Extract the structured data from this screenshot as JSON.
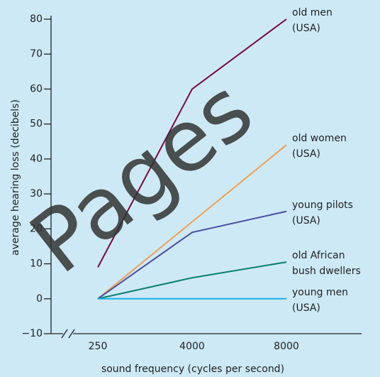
{
  "chart_data": {
    "type": "line",
    "y_label": "average hearing loss (decibels)",
    "x_label": "sound frequency (cycles per second)",
    "watermark": "Pages",
    "categories": [
      "250",
      "4000",
      "8000"
    ],
    "series": [
      {
        "name": "old men\n(USA)",
        "color": "#7a0a3c",
        "values": [
          9,
          60,
          80
        ]
      },
      {
        "name": "old women\n(USA)",
        "color": "#f0a050",
        "values": [
          0,
          22,
          44
        ]
      },
      {
        "name": "young pilots\n(USA)",
        "color": "#4a4f9e",
        "values": [
          0,
          19,
          25
        ]
      },
      {
        "name": "old African\nbush dwellers",
        "color": "#0a8070",
        "values": [
          0,
          6,
          10.5
        ]
      },
      {
        "name": "young men\n(USA)",
        "color": "#1ab0e6",
        "values": [
          0,
          0,
          0
        ]
      }
    ],
    "ylim": [
      -10,
      80
    ],
    "yticks": [
      {
        "value": -10,
        "label": "−10"
      },
      0,
      10,
      20,
      30,
      40,
      50,
      60,
      70,
      80
    ]
  }
}
